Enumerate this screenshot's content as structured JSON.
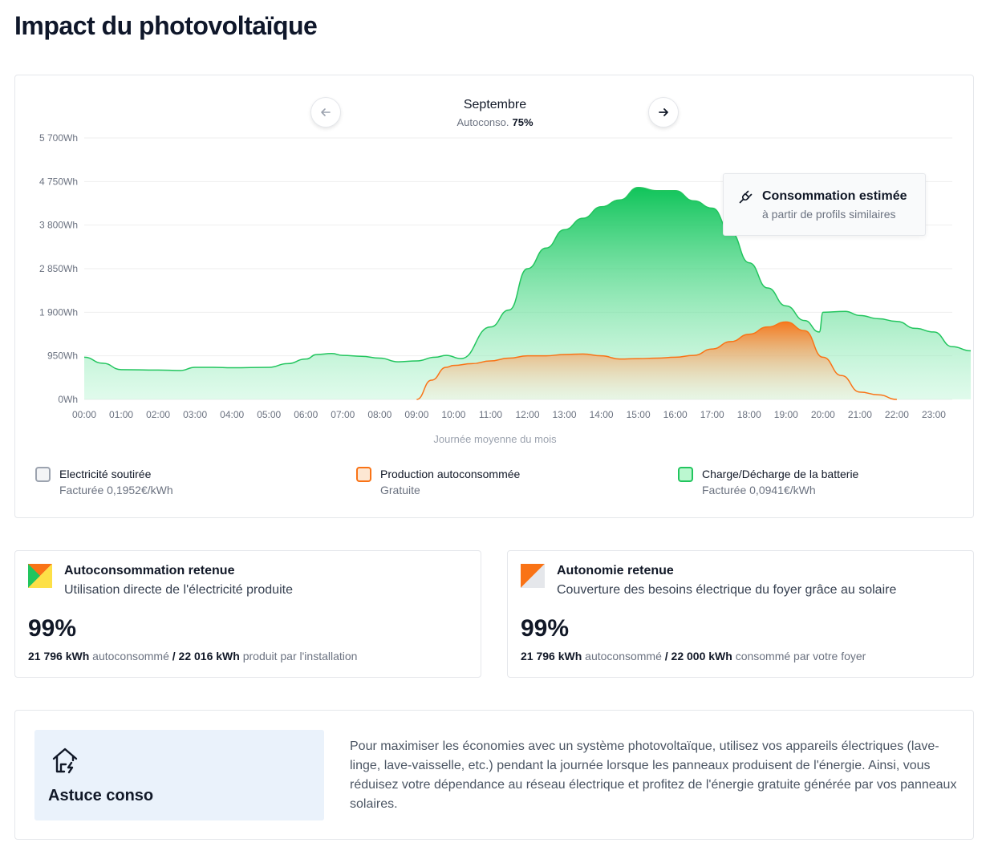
{
  "page": {
    "title": "Impact du photovoltaïque"
  },
  "chart_header": {
    "month": "Septembre",
    "autoconso_label": "Autoconso.",
    "autoconso_value": "75%"
  },
  "tooltip": {
    "title": "Consommation estimée",
    "subtitle": "à partir de profils similaires",
    "icon": "plug-icon"
  },
  "chart_data": {
    "type": "area",
    "xlabel": "Journée moyenne du mois",
    "ylabel": "",
    "x": [
      "00:00",
      "01:00",
      "02:00",
      "03:00",
      "04:00",
      "05:00",
      "06:00",
      "07:00",
      "08:00",
      "09:00",
      "10:00",
      "11:00",
      "12:00",
      "13:00",
      "14:00",
      "15:00",
      "16:00",
      "17:00",
      "18:00",
      "19:00",
      "20:00",
      "21:00",
      "22:00",
      "23:00"
    ],
    "y_ticks": [
      0,
      950,
      1900,
      2850,
      3800,
      4750,
      5700
    ],
    "y_tick_labels": [
      "0Wh",
      "950Wh",
      "1 900Wh",
      "2 850Wh",
      "3 800Wh",
      "4 750Wh",
      "5 700Wh"
    ],
    "ylim": [
      0,
      5700
    ],
    "grid": true,
    "series": [
      {
        "name": "Charge/Décharge de la batterie",
        "color": "#4ade80",
        "points": [
          [
            0,
            920
          ],
          [
            0.5,
            790
          ],
          [
            1,
            650
          ],
          [
            2,
            640
          ],
          [
            2.6,
            630
          ],
          [
            3,
            700
          ],
          [
            3.5,
            700
          ],
          [
            4,
            690
          ],
          [
            5,
            700
          ],
          [
            5.5,
            780
          ],
          [
            6,
            880
          ],
          [
            6.3,
            980
          ],
          [
            6.7,
            1000
          ],
          [
            7,
            960
          ],
          [
            7.5,
            940
          ],
          [
            8,
            900
          ],
          [
            8.5,
            820
          ],
          [
            9,
            840
          ],
          [
            9.5,
            920
          ],
          [
            9.8,
            960
          ],
          [
            10.2,
            890
          ],
          [
            11,
            1580
          ],
          [
            11.5,
            1950
          ],
          [
            12,
            2850
          ],
          [
            12.5,
            3300
          ],
          [
            13,
            3700
          ],
          [
            13.5,
            3950
          ],
          [
            14,
            4200
          ],
          [
            14.5,
            4350
          ],
          [
            15,
            4620
          ],
          [
            15.5,
            4550
          ],
          [
            16,
            4550
          ],
          [
            16.5,
            4330
          ],
          [
            17,
            4170
          ],
          [
            17.5,
            3650
          ],
          [
            18,
            2980
          ],
          [
            18.5,
            2430
          ],
          [
            19,
            2040
          ],
          [
            19.5,
            1720
          ],
          [
            19.9,
            1470
          ],
          [
            20,
            1900
          ],
          [
            20.6,
            1920
          ],
          [
            21,
            1830
          ],
          [
            21.5,
            1760
          ],
          [
            22,
            1700
          ],
          [
            22.5,
            1550
          ],
          [
            23,
            1470
          ],
          [
            23.5,
            1150
          ],
          [
            24,
            1060
          ]
        ]
      },
      {
        "name": "Production autoconsommée",
        "color": "#f97316",
        "points": [
          [
            9,
            0
          ],
          [
            9.4,
            420
          ],
          [
            9.8,
            700
          ],
          [
            10,
            740
          ],
          [
            10.5,
            780
          ],
          [
            11,
            840
          ],
          [
            11.5,
            900
          ],
          [
            12,
            950
          ],
          [
            12.5,
            950
          ],
          [
            13,
            980
          ],
          [
            13.5,
            990
          ],
          [
            14,
            950
          ],
          [
            14.5,
            880
          ],
          [
            15,
            890
          ],
          [
            15.5,
            900
          ],
          [
            16,
            920
          ],
          [
            16.5,
            960
          ],
          [
            17,
            1100
          ],
          [
            17.5,
            1260
          ],
          [
            18,
            1420
          ],
          [
            18.5,
            1580
          ],
          [
            19,
            1690
          ],
          [
            19.5,
            1500
          ],
          [
            20,
            920
          ],
          [
            20.5,
            520
          ],
          [
            21,
            160
          ],
          [
            21.5,
            100
          ],
          [
            22,
            0
          ]
        ]
      },
      {
        "name": "Electricité soutirée",
        "color": "#9ca3af",
        "points": []
      }
    ]
  },
  "legend": [
    {
      "title": "Electricité soutirée",
      "sub": "Facturée 0,1952€/kWh"
    },
    {
      "title": "Production autoconsommée",
      "sub": "Gratuite"
    },
    {
      "title": "Charge/Décharge de la batterie",
      "sub": "Facturée 0,0941€/kWh"
    }
  ],
  "stats": {
    "autoconsommation": {
      "title": "Autoconsommation retenue",
      "subtitle": "Utilisation directe de l'électricité produite",
      "value": "99%",
      "amount_a": "21 796 kWh",
      "label_a": "autoconsommé",
      "sep": "/",
      "amount_b": "22 016 kWh",
      "label_b": "produit par l'installation",
      "icon": "autoconso-flag-icon"
    },
    "autonomie": {
      "title": "Autonomie retenue",
      "subtitle": "Couverture des besoins électrique du foyer grâce au solaire",
      "value": "99%",
      "amount_a": "21 796 kWh",
      "label_a": "autoconsommé",
      "sep": "/",
      "amount_b": "22 000 kWh",
      "label_b": "consommé par votre foyer",
      "icon": "autonomie-flag-icon"
    }
  },
  "tip": {
    "title": "Astuce conso",
    "icon": "house-bolt-icon",
    "text": "Pour maximiser les économies avec un système photovoltaïque, utilisez vos appareils électriques (lave-linge, lave-vaisselle, etc.) pendant la journée lorsque les panneaux produisent de l'énergie. Ainsi, vous réduisez votre dépendance au réseau électrique et profitez de l'énergie gratuite générée par vos panneaux solaires."
  }
}
